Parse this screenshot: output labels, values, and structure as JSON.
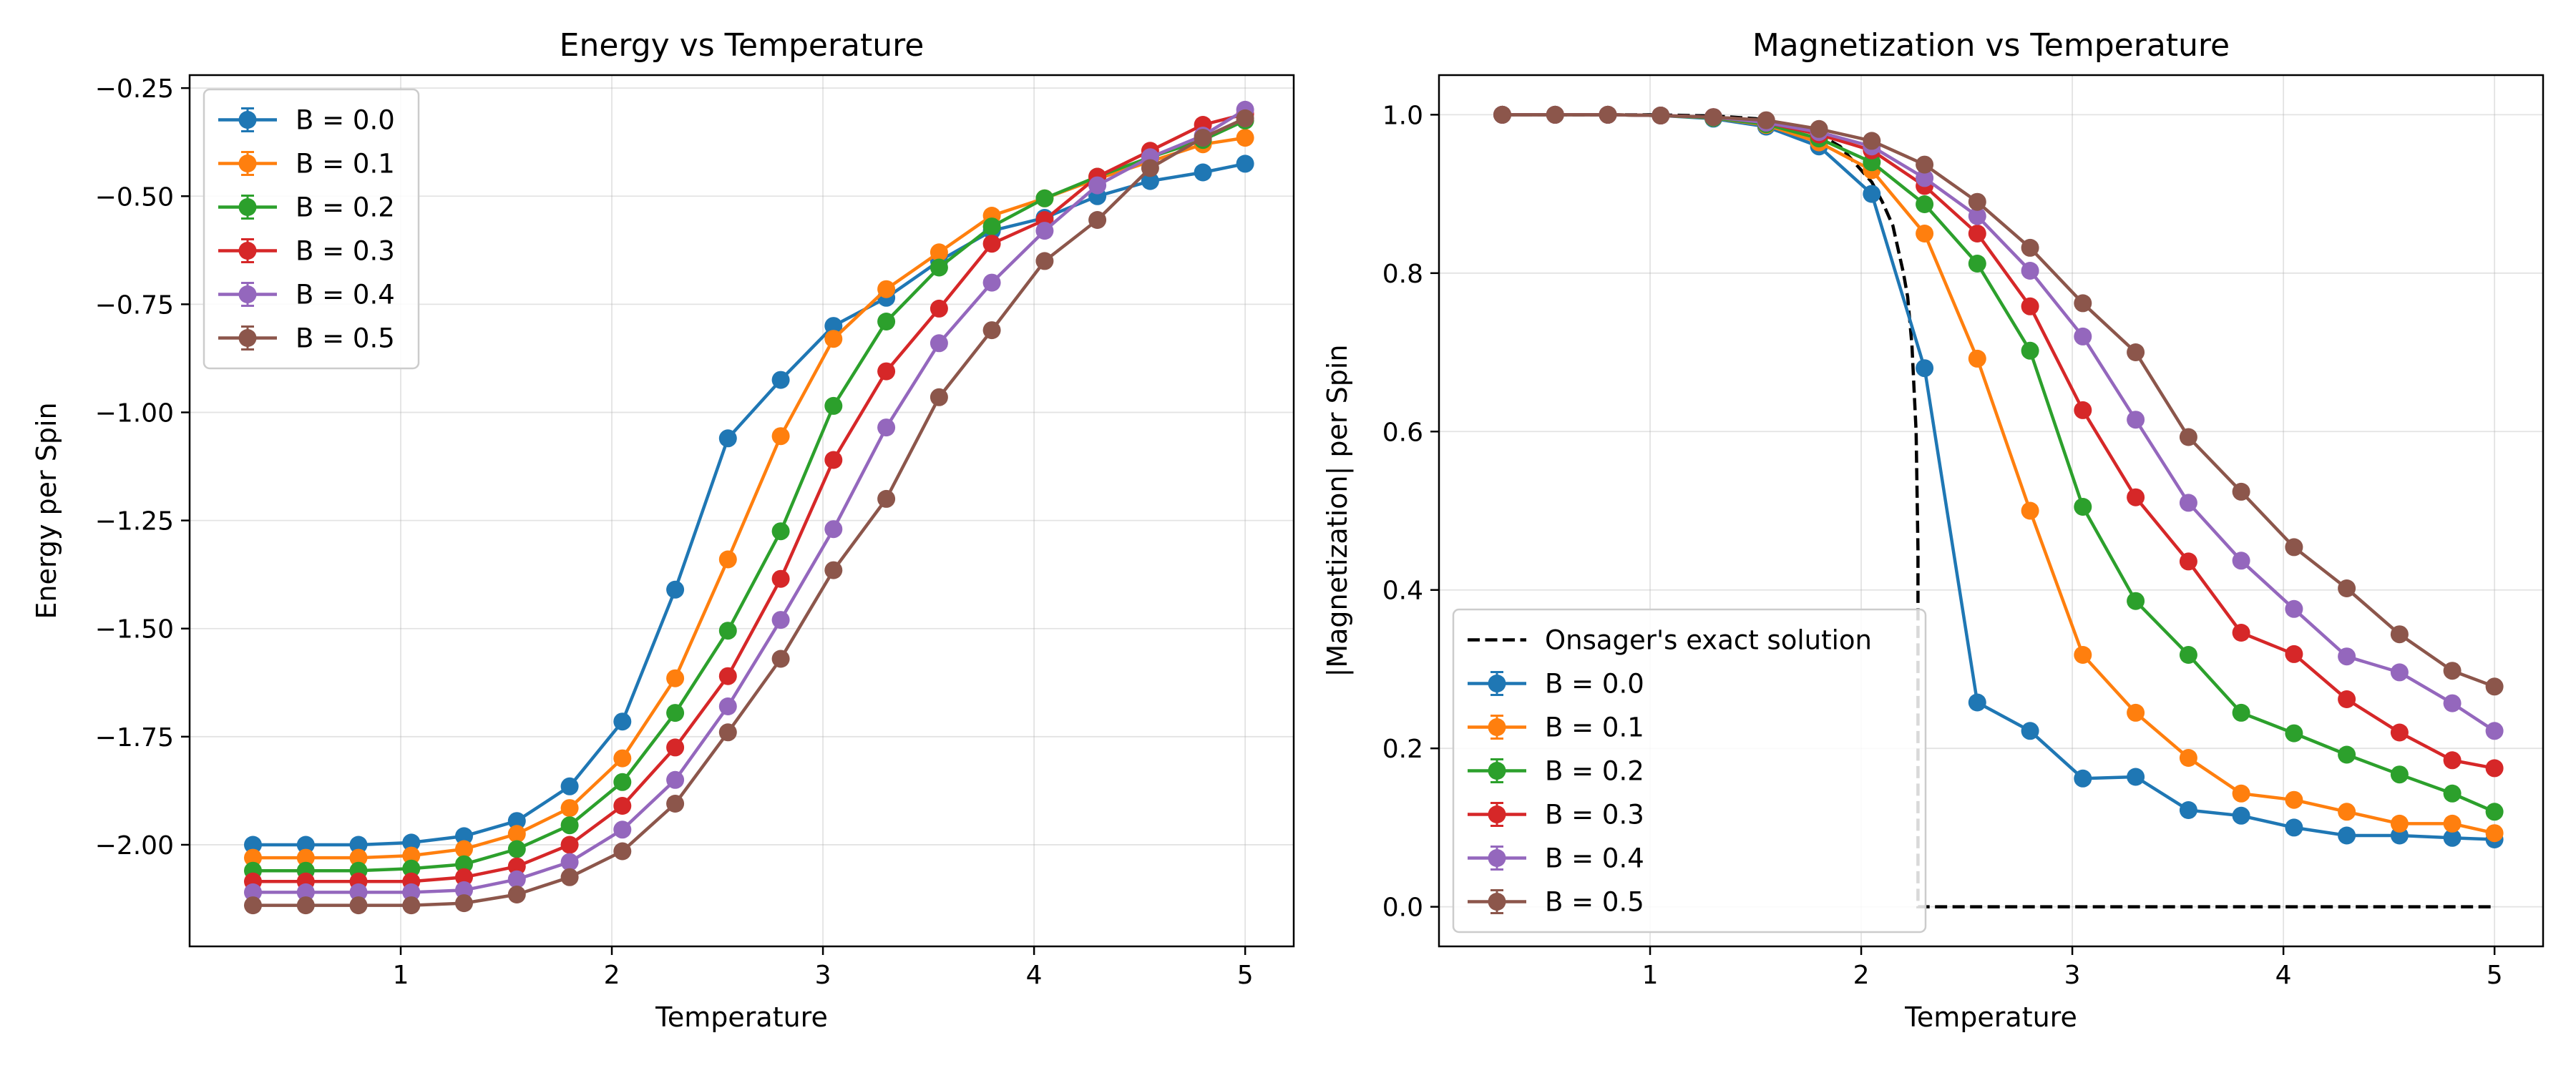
{
  "chart_data": [
    {
      "type": "line",
      "title": "Energy vs Temperature",
      "xlabel": "Temperature",
      "ylabel": "Energy per Spin",
      "xlim": [
        0.0,
        5.23
      ],
      "ylim": [
        -2.235,
        -0.22
      ],
      "xticks": [
        1,
        2,
        3,
        4,
        5
      ],
      "xtick_labels": [
        "1",
        "2",
        "3",
        "4",
        "5"
      ],
      "yticks": [
        -2.0,
        -1.75,
        -1.5,
        -1.25,
        -1.0,
        -0.75,
        -0.5,
        -0.25
      ],
      "ytick_labels": [
        "−2.00",
        "−1.75",
        "−1.50",
        "−1.25",
        "−1.00",
        "−0.75",
        "−0.50",
        "−0.25"
      ],
      "grid": true,
      "legend_position": "upper-left",
      "x": [
        0.3,
        0.55,
        0.8,
        1.05,
        1.3,
        1.55,
        1.8,
        2.05,
        2.3,
        2.55,
        2.8,
        3.05,
        3.3,
        3.55,
        3.8,
        4.05,
        4.3,
        4.55,
        4.8,
        5.0
      ],
      "series": [
        {
          "name": "B = 0.0",
          "color": "#1f77b4",
          "values": [
            -2.0,
            -2.0,
            -2.0,
            -1.995,
            -1.98,
            -1.945,
            -1.865,
            -1.715,
            -1.41,
            -1.06,
            -0.925,
            -0.8,
            -0.735,
            -0.65,
            -0.58,
            -0.55,
            -0.5,
            -0.465,
            -0.445,
            -0.425
          ]
        },
        {
          "name": "B = 0.1",
          "color": "#ff7f0e",
          "values": [
            -2.03,
            -2.03,
            -2.03,
            -2.025,
            -2.01,
            -1.975,
            -1.915,
            -1.8,
            -1.615,
            -1.34,
            -1.055,
            -0.83,
            -0.715,
            -0.63,
            -0.545,
            -0.505,
            -0.46,
            -0.42,
            -0.38,
            -0.365
          ]
        },
        {
          "name": "B = 0.2",
          "color": "#2ca02c",
          "values": [
            -2.06,
            -2.06,
            -2.06,
            -2.055,
            -2.045,
            -2.01,
            -1.955,
            -1.855,
            -1.695,
            -1.505,
            -1.275,
            -0.985,
            -0.79,
            -0.665,
            -0.57,
            -0.505,
            -0.455,
            -0.41,
            -0.37,
            -0.325
          ]
        },
        {
          "name": "B = 0.3",
          "color": "#d62728",
          "values": [
            -2.085,
            -2.085,
            -2.085,
            -2.085,
            -2.075,
            -2.05,
            -2.0,
            -1.91,
            -1.775,
            -1.61,
            -1.385,
            -1.11,
            -0.905,
            -0.76,
            -0.61,
            -0.555,
            -0.455,
            -0.395,
            -0.335,
            -0.31
          ]
        },
        {
          "name": "B = 0.4",
          "color": "#9467bd",
          "values": [
            -2.11,
            -2.11,
            -2.11,
            -2.11,
            -2.105,
            -2.08,
            -2.04,
            -1.965,
            -1.85,
            -1.68,
            -1.48,
            -1.27,
            -1.035,
            -0.84,
            -0.7,
            -0.58,
            -0.475,
            -0.41,
            -0.36,
            -0.3
          ]
        },
        {
          "name": "B = 0.5",
          "color": "#8c564b",
          "values": [
            -2.14,
            -2.14,
            -2.14,
            -2.14,
            -2.135,
            -2.115,
            -2.075,
            -2.015,
            -1.905,
            -1.74,
            -1.57,
            -1.365,
            -1.2,
            -0.965,
            -0.81,
            -0.65,
            -0.555,
            -0.435,
            -0.365,
            -0.32
          ]
        }
      ]
    },
    {
      "type": "line",
      "title": "Magnetization vs Temperature",
      "xlabel": "Temperature",
      "ylabel": "|Magnetization| per Spin",
      "xlim": [
        0.0,
        5.23
      ],
      "ylim": [
        -0.05,
        1.05
      ],
      "xticks": [
        1,
        2,
        3,
        4,
        5
      ],
      "xtick_labels": [
        "1",
        "2",
        "3",
        "4",
        "5"
      ],
      "yticks": [
        0.0,
        0.2,
        0.4,
        0.6,
        0.8,
        1.0
      ],
      "ytick_labels": [
        "0.0",
        "0.2",
        "0.4",
        "0.6",
        "0.8",
        "1.0"
      ],
      "grid": true,
      "legend_position": "lower-left",
      "x": [
        0.3,
        0.55,
        0.8,
        1.05,
        1.3,
        1.55,
        1.8,
        2.05,
        2.3,
        2.55,
        2.8,
        3.05,
        3.3,
        3.55,
        3.8,
        4.05,
        4.3,
        4.55,
        4.8,
        5.0
      ],
      "reference": {
        "name": "Onsager's exact solution",
        "color": "#000000",
        "style": "dashed",
        "x": [
          0.3,
          1.0,
          1.3,
          1.5,
          1.7,
          1.8,
          1.9,
          2.0,
          2.05,
          2.1,
          2.15,
          2.2,
          2.22,
          2.24,
          2.26,
          2.269,
          2.269,
          5.0
        ],
        "values": [
          1.0,
          0.9999,
          0.9985,
          0.995,
          0.985,
          0.975,
          0.96,
          0.93,
          0.915,
          0.89,
          0.86,
          0.8,
          0.77,
          0.71,
          0.6,
          0.45,
          0.0,
          0.0
        ]
      },
      "series": [
        {
          "name": "B = 0.0",
          "color": "#1f77b4",
          "values": [
            1.0,
            1.0,
            1.0,
            0.999,
            0.995,
            0.985,
            0.96,
            0.9,
            0.68,
            0.258,
            0.222,
            0.162,
            0.164,
            0.122,
            0.115,
            0.1,
            0.09,
            0.09,
            0.087,
            0.085
          ]
        },
        {
          "name": "B = 0.1",
          "color": "#ff7f0e",
          "values": [
            1.0,
            1.0,
            1.0,
            0.999,
            0.996,
            0.987,
            0.965,
            0.93,
            0.85,
            0.692,
            0.5,
            0.318,
            0.245,
            0.188,
            0.143,
            0.135,
            0.12,
            0.105,
            0.105,
            0.093
          ]
        },
        {
          "name": "B = 0.2",
          "color": "#2ca02c",
          "values": [
            1.0,
            1.0,
            1.0,
            0.999,
            0.996,
            0.988,
            0.97,
            0.94,
            0.887,
            0.812,
            0.702,
            0.505,
            0.386,
            0.318,
            0.245,
            0.219,
            0.192,
            0.167,
            0.143,
            0.12
          ]
        },
        {
          "name": "B = 0.3",
          "color": "#d62728",
          "values": [
            1.0,
            1.0,
            1.0,
            0.999,
            0.997,
            0.99,
            0.975,
            0.955,
            0.91,
            0.85,
            0.758,
            0.627,
            0.517,
            0.436,
            0.346,
            0.319,
            0.262,
            0.22,
            0.185,
            0.175
          ]
        },
        {
          "name": "B = 0.4",
          "color": "#9467bd",
          "values": [
            1.0,
            1.0,
            1.0,
            0.999,
            0.997,
            0.99,
            0.978,
            0.96,
            0.92,
            0.872,
            0.803,
            0.72,
            0.615,
            0.51,
            0.437,
            0.376,
            0.316,
            0.296,
            0.257,
            0.222
          ]
        },
        {
          "name": "B = 0.5",
          "color": "#8c564b",
          "values": [
            1.0,
            1.0,
            1.0,
            0.999,
            0.997,
            0.993,
            0.982,
            0.967,
            0.937,
            0.89,
            0.832,
            0.762,
            0.7,
            0.593,
            0.524,
            0.454,
            0.402,
            0.344,
            0.298,
            0.278
          ]
        }
      ]
    }
  ]
}
